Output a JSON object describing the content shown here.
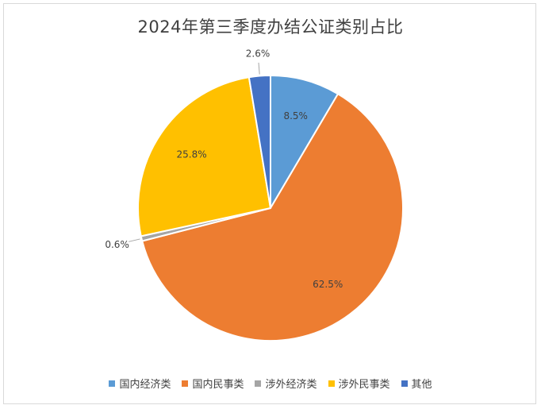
{
  "chart_data": {
    "type": "pie",
    "title": "2024年第三季度办结公证类别占比",
    "categories": [
      "国内经济类",
      "国内民事类",
      "涉外经济类",
      "涉外民事类",
      "其他"
    ],
    "values": [
      8.5,
      62.5,
      0.6,
      25.8,
      2.6
    ],
    "labels": [
      "8.5%",
      "62.5%",
      "0.6%",
      "25.8%",
      "2.6%"
    ],
    "colors": [
      "#5b9bd5",
      "#ed7d31",
      "#a5a5a5",
      "#ffc000",
      "#4472c4"
    ],
    "legend_position": "bottom"
  }
}
